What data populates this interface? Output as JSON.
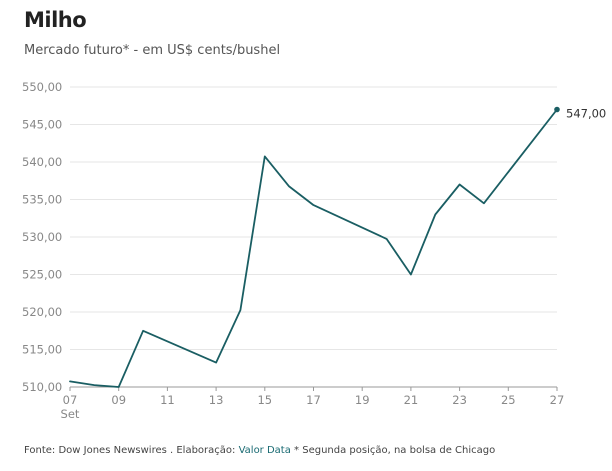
{
  "header": {
    "title": "Milho",
    "subtitle": "Mercado futuro* - em US$ cents/bushel"
  },
  "footer": {
    "source": "Fonte: Dow Jones Newswires . Elaboração: ",
    "link": "Valor Data",
    "note": " * Segunda posição, na bolsa de Chicago"
  },
  "colors": {
    "line": "#1a5e63",
    "grid": "#e6e6e6",
    "axis": "#999999"
  },
  "chart_data": {
    "type": "line",
    "title": "Milho",
    "subtitle": "Mercado futuro* - em US$ cents/bushel",
    "xlabel": "",
    "ylabel": "",
    "grid": true,
    "xlim": [
      7,
      27
    ],
    "ylim": [
      510,
      550
    ],
    "x_ticks": [
      7,
      9,
      11,
      13,
      15,
      17,
      19,
      21,
      23,
      25,
      27
    ],
    "x_tick_labels": [
      "07",
      "09",
      "11",
      "13",
      "15",
      "17",
      "19",
      "21",
      "23",
      "25",
      "27"
    ],
    "x_sublabel": "Set",
    "y_ticks": [
      510,
      515,
      520,
      525,
      530,
      535,
      540,
      545,
      550
    ],
    "y_tick_labels": [
      "510,00",
      "515,00",
      "520,00",
      "525,00",
      "530,00",
      "535,00",
      "540,00",
      "545,00",
      "550,00"
    ],
    "series": [
      {
        "name": "Milho",
        "x": [
          7,
          8,
          9,
          10,
          13,
          14,
          15,
          16,
          17,
          20,
          21,
          22,
          23,
          24,
          27
        ],
        "values": [
          510.75,
          510.25,
          510.0,
          517.5,
          513.25,
          520.25,
          540.75,
          536.75,
          534.25,
          529.75,
          525.0,
          533.0,
          537.0,
          534.5,
          547.0
        ]
      }
    ],
    "end_label": "547,00"
  }
}
